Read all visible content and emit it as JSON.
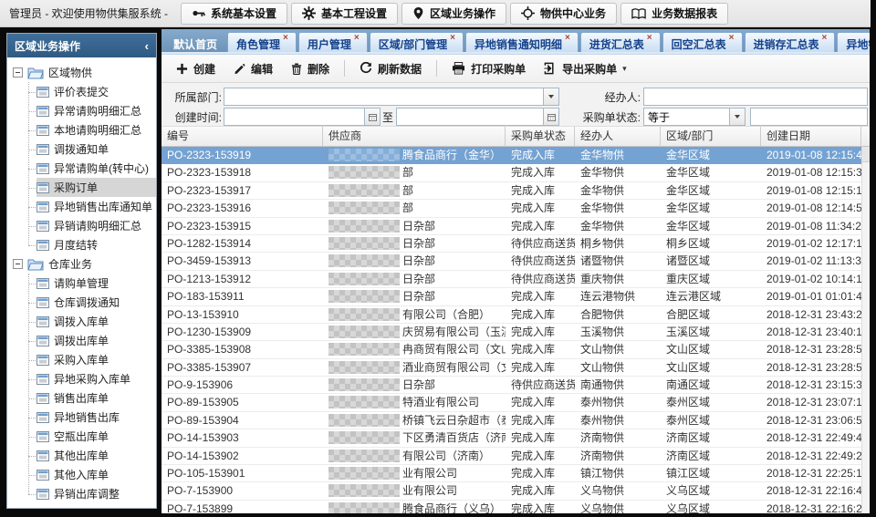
{
  "topbar": {
    "title": "管理员 - 欢迎使用物供集服系统 -",
    "menus": [
      {
        "name": "system-basic-settings",
        "icon": "key-icon",
        "label": "系统基本设置"
      },
      {
        "name": "basic-project-settings",
        "icon": "gear-icon",
        "label": "基本工程设置"
      },
      {
        "name": "region-business-operations",
        "icon": "pin-icon",
        "label": "区域业务操作"
      },
      {
        "name": "supply-center-business",
        "icon": "target-icon",
        "label": "物供中心业务"
      },
      {
        "name": "business-data-reports",
        "icon": "book-icon",
        "label": "业务数据报表"
      }
    ]
  },
  "tabs": [
    {
      "name": "tab-home",
      "label": "默认首页",
      "closable": false,
      "active": false
    },
    {
      "name": "tab-role-management",
      "label": "角色管理",
      "closable": true,
      "active": false
    },
    {
      "name": "tab-user-management",
      "label": "用户管理",
      "closable": true,
      "active": false
    },
    {
      "name": "tab-region-department-management",
      "label": "区域/部门管理",
      "closable": true,
      "active": false
    },
    {
      "name": "tab-remote-sales-notice-detail",
      "label": "异地销售通知明细",
      "closable": true,
      "active": false
    },
    {
      "name": "tab-purchase-summary",
      "label": "进货汇总表",
      "closable": true,
      "active": false
    },
    {
      "name": "tab-empty-return-summary",
      "label": "回空汇总表",
      "closable": true,
      "active": false
    },
    {
      "name": "tab-purchase-sale-stock-summary",
      "label": "进销存汇总表",
      "closable": true,
      "active": false
    },
    {
      "name": "tab-remote-sales-adjust-detail",
      "label": "异地销售调整明细",
      "closable": true,
      "active": false
    },
    {
      "name": "tab-purchase-order",
      "label": "采购订单",
      "closable": true,
      "active": true
    }
  ],
  "sidebar": {
    "header": "区域业务操作",
    "collapse_glyph": "‹",
    "selected": "采购订单",
    "groups": [
      {
        "name": "group-region-supply",
        "label": "区域物供",
        "items": [
          {
            "name": "item-evaluation-form-submit",
            "label": "评价表提交"
          },
          {
            "name": "item-abnormal-request-detail-summary",
            "label": "异常请购明细汇总"
          },
          {
            "name": "item-local-request-detail-summary",
            "label": "本地请购明细汇总"
          },
          {
            "name": "item-transfer-notice",
            "label": "调拨通知单"
          },
          {
            "name": "item-abnormal-request-to-center",
            "label": "异常请购单(转中心)"
          },
          {
            "name": "item-purchase-order",
            "label": "采购订单"
          },
          {
            "name": "item-remote-sales-outbound-notice",
            "label": "异地销售出库通知单"
          },
          {
            "name": "item-remote-request-detail-summary",
            "label": "异销请购明细汇总"
          },
          {
            "name": "item-monthly-closing",
            "label": "月度结转"
          }
        ]
      },
      {
        "name": "group-warehouse-business",
        "label": "仓库业务",
        "items": [
          {
            "name": "item-request-order-management",
            "label": "请购单管理"
          },
          {
            "name": "item-warehouse-transfer-notice",
            "label": "仓库调拨通知"
          },
          {
            "name": "item-transfer-inbound",
            "label": "调拨入库单"
          },
          {
            "name": "item-transfer-outbound",
            "label": "调拨出库单"
          },
          {
            "name": "item-purchase-inbound",
            "label": "采购入库单"
          },
          {
            "name": "item-remote-purchase-inbound",
            "label": "异地采购入库单"
          },
          {
            "name": "item-sales-outbound",
            "label": "销售出库单"
          },
          {
            "name": "item-remote-sales-outbound",
            "label": "异地销售出库"
          },
          {
            "name": "item-empty-bottle-outbound",
            "label": "空瓶出库单"
          },
          {
            "name": "item-other-outbound",
            "label": "其他出库单"
          },
          {
            "name": "item-other-inbound",
            "label": "其他入库单"
          },
          {
            "name": "item-remote-sales-outbound-adjust",
            "label": "异销出库调整"
          }
        ]
      }
    ]
  },
  "toolbar": {
    "buttons": [
      {
        "name": "create-button",
        "icon": "plus-icon",
        "label": "创建"
      },
      {
        "name": "edit-button",
        "icon": "pencil-icon",
        "label": "编辑"
      },
      {
        "name": "delete-button",
        "icon": "trash-icon",
        "label": "删除"
      },
      {
        "name": "refresh-button",
        "icon": "refresh-icon",
        "label": "刷新数据"
      },
      {
        "name": "print-button",
        "icon": "printer-icon",
        "label": "打印采购单"
      },
      {
        "name": "export-button",
        "icon": "export-icon",
        "label": "导出采购单",
        "dropdown": true
      }
    ]
  },
  "filters": {
    "department_label": "所属部门:",
    "department_value": "",
    "operator_label": "经办人:",
    "operator_value": "",
    "created_label": "创建时间:",
    "date_from_value": "",
    "to_label": "至",
    "date_to_value": "",
    "status_label": "采购单状态:",
    "status_operator_value": "等于",
    "status_value": ""
  },
  "table": {
    "columns": [
      "编号",
      "供应商",
      "采购单状态",
      "经办人",
      "区域/部门",
      "创建日期"
    ],
    "rows": [
      {
        "po": "PO-2323-153919",
        "supplier": "腾食品商行（金华）",
        "masked": true,
        "status": "完成入库",
        "operator": "金华物供",
        "region": "金华区域",
        "created": "2019-01-08 12:15:43",
        "selected": true
      },
      {
        "po": "PO-2323-153918",
        "supplier": "部",
        "masked": true,
        "status": "完成入库",
        "operator": "金华物供",
        "region": "金华区域",
        "created": "2019-01-08 12:15:30",
        "selected": false
      },
      {
        "po": "PO-2323-153917",
        "supplier": "部",
        "masked": true,
        "status": "完成入库",
        "operator": "金华物供",
        "region": "金华区域",
        "created": "2019-01-08 12:15:12",
        "selected": false
      },
      {
        "po": "PO-2323-153916",
        "supplier": "部",
        "masked": true,
        "status": "完成入库",
        "operator": "金华物供",
        "region": "金华区域",
        "created": "2019-01-08 12:14:58",
        "selected": false
      },
      {
        "po": "PO-2323-153915",
        "supplier": "日杂部",
        "masked": true,
        "status": "完成入库",
        "operator": "金华物供",
        "region": "金华区域",
        "created": "2019-01-08 11:34:27",
        "selected": false
      },
      {
        "po": "PO-1282-153914",
        "supplier": "日杂部",
        "masked": true,
        "status": "待供应商送货",
        "operator": "桐乡物供",
        "region": "桐乡区域",
        "created": "2019-01-02 12:17:15",
        "selected": false
      },
      {
        "po": "PO-3459-153913",
        "supplier": "日杂部",
        "masked": true,
        "status": "待供应商送货",
        "operator": "诸暨物供",
        "region": "诸暨区域",
        "created": "2019-01-02 11:13:36",
        "selected": false
      },
      {
        "po": "PO-1213-153912",
        "supplier": "日杂部",
        "masked": true,
        "status": "待供应商送货",
        "operator": "重庆物供",
        "region": "重庆区域",
        "created": "2019-01-02 10:14:13",
        "selected": false
      },
      {
        "po": "PO-183-153911",
        "supplier": "日杂部",
        "masked": true,
        "status": "完成入库",
        "operator": "连云港物供",
        "region": "连云港区域",
        "created": "2019-01-01 01:01:41",
        "selected": false
      },
      {
        "po": "PO-13-153910",
        "supplier": "有限公司（合肥）",
        "masked": true,
        "status": "完成入库",
        "operator": "合肥物供",
        "region": "合肥区域",
        "created": "2018-12-31 23:43:26",
        "selected": false
      },
      {
        "po": "PO-1230-153909",
        "supplier": "庆贸易有限公司（玉溪）",
        "masked": true,
        "status": "完成入库",
        "operator": "玉溪物供",
        "region": "玉溪区域",
        "created": "2018-12-31 23:40:13",
        "selected": false
      },
      {
        "po": "PO-3385-153908",
        "supplier": "冉商贸有限公司（文山）",
        "masked": true,
        "status": "完成入库",
        "operator": "文山物供",
        "region": "文山区域",
        "created": "2018-12-31 23:28:57",
        "selected": false
      },
      {
        "po": "PO-3385-153907",
        "supplier": "酒业商贸有限公司（文山）",
        "masked": true,
        "status": "完成入库",
        "operator": "文山物供",
        "region": "文山区域",
        "created": "2018-12-31 23:28:52",
        "selected": false
      },
      {
        "po": "PO-9-153906",
        "supplier": "日杂部",
        "masked": true,
        "status": "待供应商送货",
        "operator": "南通物供",
        "region": "南通区域",
        "created": "2018-12-31 23:15:30",
        "selected": false
      },
      {
        "po": "PO-89-153905",
        "supplier": "特酒业有限公司",
        "masked": true,
        "status": "完成入库",
        "operator": "泰州物供",
        "region": "泰州区域",
        "created": "2018-12-31 23:07:15",
        "selected": false
      },
      {
        "po": "PO-89-153904",
        "supplier": "桥镇飞云日杂超市（泰州）",
        "masked": true,
        "status": "完成入库",
        "operator": "泰州物供",
        "region": "泰州区域",
        "created": "2018-12-31 23:06:55",
        "selected": false
      },
      {
        "po": "PO-14-153903",
        "supplier": "下区勇清百货店（济南）",
        "masked": true,
        "status": "完成入库",
        "operator": "济南物供",
        "region": "济南区域",
        "created": "2018-12-31 22:49:48",
        "selected": false
      },
      {
        "po": "PO-14-153902",
        "supplier": "有限公司（济南）",
        "masked": true,
        "status": "完成入库",
        "operator": "济南物供",
        "region": "济南区域",
        "created": "2018-12-31 22:49:29",
        "selected": false
      },
      {
        "po": "PO-105-153901",
        "supplier": "业有限公司",
        "masked": true,
        "status": "完成入库",
        "operator": "镇江物供",
        "region": "镇江区域",
        "created": "2018-12-31 22:25:13",
        "selected": false
      },
      {
        "po": "PO-7-153900",
        "supplier": "业有限公司",
        "masked": true,
        "status": "完成入库",
        "operator": "义乌物供",
        "region": "义乌区域",
        "created": "2018-12-31 22:16:46",
        "selected": false
      },
      {
        "po": "PO-7-153899",
        "supplier": "腾食品商行（义乌）",
        "masked": true,
        "status": "完成入库",
        "operator": "义乌物供",
        "region": "义乌区域",
        "created": "2018-12-31 22:16:23",
        "selected": false
      }
    ]
  }
}
